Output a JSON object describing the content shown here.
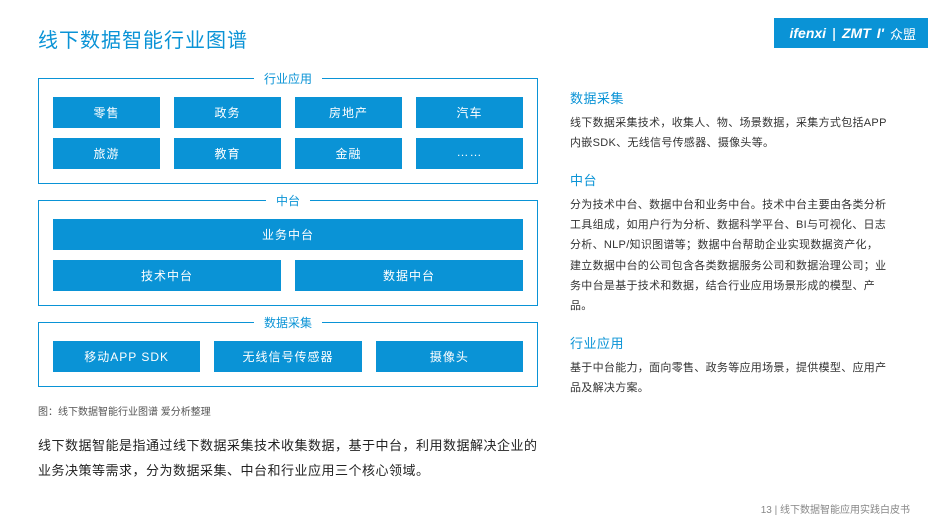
{
  "colors": {
    "accent": "#0a93d6",
    "text": "#333333",
    "bg": "#ffffff"
  },
  "header": {
    "title": "线下数据智能行业图谱",
    "brand_left": "ifenxi",
    "brand_mid": "ZMT",
    "brand_tail": "I'",
    "brand_cn": "众盟"
  },
  "diagram": {
    "industry": {
      "label": "行业应用",
      "items": [
        "零售",
        "政务",
        "房地产",
        "汽车",
        "旅游",
        "教育",
        "金融",
        "……"
      ]
    },
    "middle": {
      "label": "中台",
      "full": "业务中台",
      "items": [
        "技术中台",
        "数据中台"
      ]
    },
    "collect": {
      "label": "数据采集",
      "items": [
        "移动APP SDK",
        "无线信号传感器",
        "摄像头"
      ]
    },
    "caption": "图：线下数据智能行业图谱  爱分析整理",
    "paragraph": "线下数据智能是指通过线下数据采集技术收集数据，基于中台，利用数据解决企业的业务决策等需求，分为数据采集、中台和行业应用三个核心领域。"
  },
  "sections": {
    "collect": {
      "title": "数据采集",
      "body": "线下数据采集技术，收集人、物、场景数据，采集方式包括APP内嵌SDK、无线信号传感器、摄像头等。"
    },
    "middle": {
      "title": "中台",
      "body": "分为技术中台、数据中台和业务中台。技术中台主要由各类分析工具组成，如用户行为分析、数据科学平台、BI与可视化、日志分析、NLP/知识图谱等；数据中台帮助企业实现数据资产化，建立数据中台的公司包含各类数据服务公司和数据治理公司；业务中台是基于技术和数据，结合行业应用场景形成的模型、产品。"
    },
    "industry": {
      "title": "行业应用",
      "body": "基于中台能力，面向零售、政务等应用场景，提供模型、应用产品及解决方案。"
    }
  },
  "footer": {
    "page": "13",
    "doc": "线下数据智能应用实践白皮书"
  }
}
